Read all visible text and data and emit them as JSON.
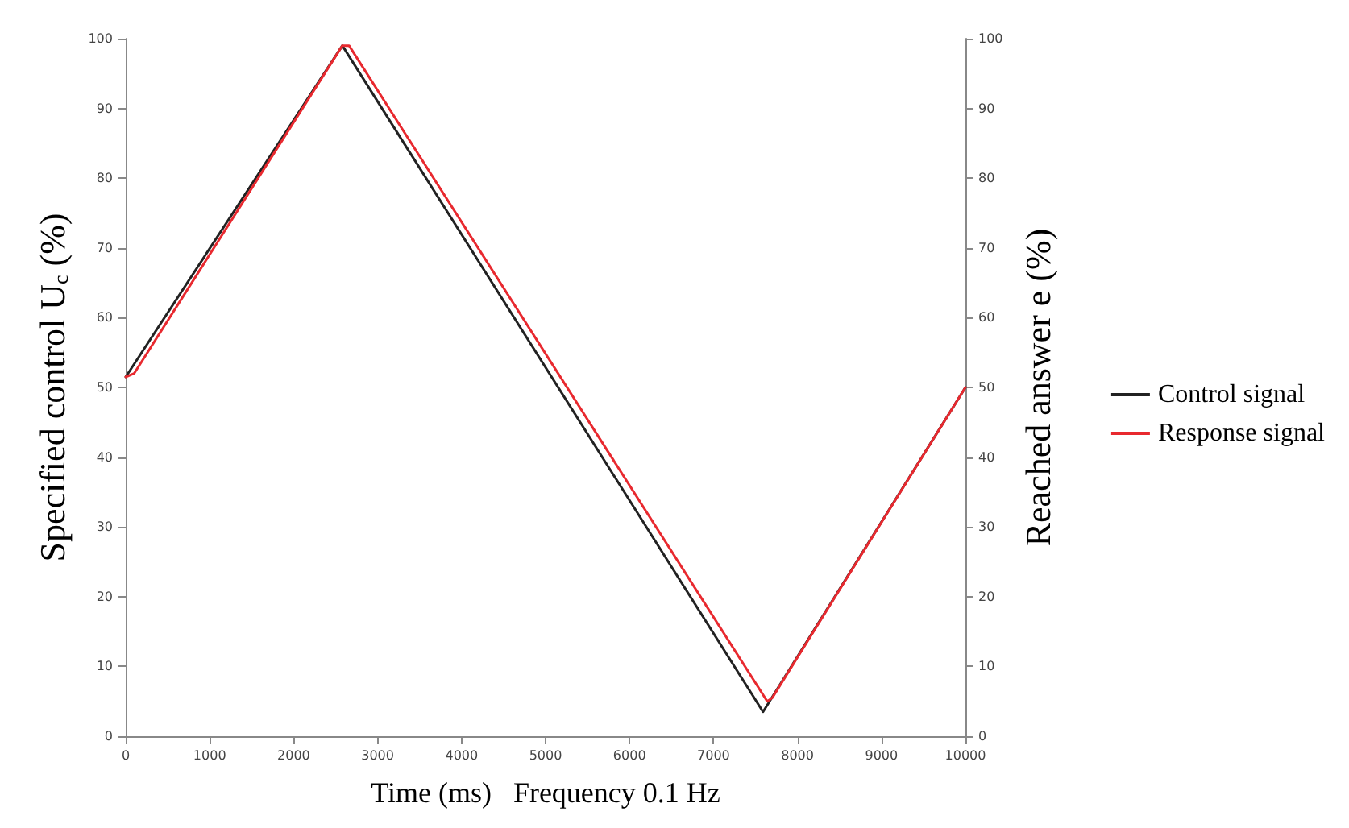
{
  "chart_data": {
    "type": "line",
    "xlabel": "Time (ms)   Frequency 0.1 Hz",
    "ylabel": "Specified control U$_{c}$ (%)",
    "y2label": "Reached answer e (%)",
    "xlim": [
      0,
      10000
    ],
    "xticks": [
      0,
      1000,
      2000,
      3000,
      4000,
      5000,
      6000,
      7000,
      8000,
      9000,
      10000
    ],
    "ylim": [
      0,
      100
    ],
    "yticks": [
      0,
      10,
      20,
      30,
      40,
      50,
      60,
      70,
      80,
      90,
      100
    ],
    "y2lim": [
      0,
      100
    ],
    "y2ticks": [
      0,
      10,
      20,
      30,
      40,
      50,
      60,
      70,
      80,
      90,
      100
    ],
    "grid": false,
    "legend": "right",
    "marker": "none",
    "line_style": "solid",
    "series": [
      {
        "name": "Control signal",
        "color": "#222222",
        "x": [
          0,
          2580,
          7590,
          10000
        ],
        "values": [
          51.5,
          99,
          3.5,
          50
        ]
      },
      {
        "name": "Response signal",
        "color": "#e8292f",
        "x": [
          0,
          100,
          2580,
          2660,
          7640,
          7700,
          10000
        ],
        "values": [
          51.5,
          52,
          99,
          99,
          5,
          5.5,
          50
        ]
      }
    ]
  }
}
